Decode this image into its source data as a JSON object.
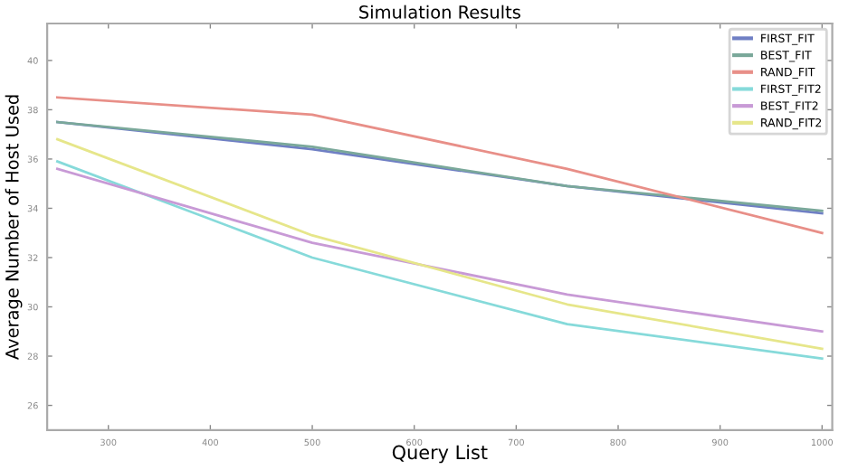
{
  "chart_data": {
    "type": "line",
    "title": "Simulation Results",
    "xlabel": "Query List",
    "ylabel": "Average Number of Host Used",
    "x": [
      250,
      500,
      750,
      1000
    ],
    "series": [
      {
        "name": "FIRST_FIT",
        "color": "#6f7fc4",
        "values": [
          37.5,
          36.4,
          34.9,
          33.8
        ]
      },
      {
        "name": "BEST_FIT",
        "color": "#7aa89a",
        "values": [
          37.5,
          36.5,
          34.9,
          33.9
        ]
      },
      {
        "name": "RAND_FIT",
        "color": "#e88f88",
        "values": [
          38.5,
          37.8,
          35.6,
          33.0
        ]
      },
      {
        "name": "FIRST_FIT2",
        "color": "#86dada",
        "values": [
          35.9,
          32.0,
          29.3,
          27.9
        ]
      },
      {
        "name": "BEST_FIT2",
        "color": "#c89ad6",
        "values": [
          35.6,
          32.6,
          30.5,
          29.0
        ]
      },
      {
        "name": "RAND_FIT2",
        "color": "#e6e68a",
        "values": [
          36.8,
          32.9,
          30.1,
          28.3
        ]
      }
    ],
    "xlim": [
      240,
      1010
    ],
    "ylim": [
      25,
      41.5
    ],
    "xticks": [
      300,
      400,
      500,
      600,
      700,
      800,
      900,
      1000
    ],
    "yticks": [
      26,
      28,
      30,
      32,
      34,
      36,
      38,
      40
    ],
    "legend": "top right",
    "grid": false,
    "marker": "none",
    "line_style": "solid"
  }
}
